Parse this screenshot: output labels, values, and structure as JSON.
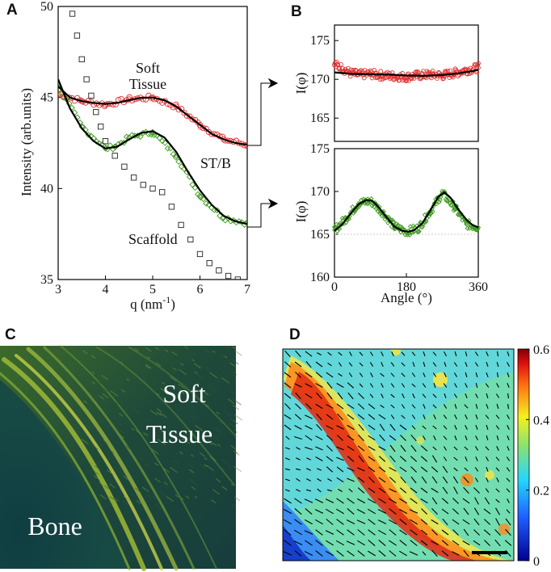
{
  "panels": {
    "a": {
      "letter": "A"
    },
    "b": {
      "letter": "B"
    },
    "c": {
      "letter": "C"
    },
    "d": {
      "letter": "D"
    }
  },
  "colors": {
    "soft_tissue": "#e03030",
    "st_b": "#3a9a1c",
    "scaffold": "#222222",
    "fit": "#000000"
  },
  "chart_data": [
    {
      "id": "A",
      "type": "scatter",
      "title": "",
      "xlabel_base": "q (nm",
      "xlabel_sup": "-1",
      "xlabel_close": ")",
      "ylabel": "Intensity (arb.units)",
      "xlim": [
        3,
        7
      ],
      "ylim": [
        35,
        50
      ],
      "xticks": [
        "3",
        "4",
        "5",
        "6",
        "7"
      ],
      "yticks": [
        "35",
        "40",
        "45",
        "50"
      ],
      "annotations": {
        "soft_tissue_line1": "Soft",
        "soft_tissue_line2": "Tissue",
        "stb": "ST/B",
        "scaffold": "Scaffold"
      },
      "series": [
        {
          "name": "Soft Tissue",
          "marker": "circle",
          "color": "#e03030",
          "x": [
            3.0,
            3.5,
            4.0,
            4.5,
            5.0,
            5.5,
            6.0,
            6.5,
            7.0
          ],
          "y": [
            45.2,
            44.8,
            44.6,
            44.9,
            45.0,
            44.5,
            43.5,
            42.7,
            42.4
          ]
        },
        {
          "name": "ST/B",
          "marker": "diamond",
          "color": "#3a9a1c",
          "x": [
            3.0,
            3.5,
            4.0,
            4.2,
            4.5,
            5.0,
            5.5,
            6.0,
            6.5,
            7.0
          ],
          "y": [
            45.6,
            43.4,
            42.2,
            42.3,
            42.8,
            43.1,
            41.8,
            39.6,
            38.4,
            38.1
          ]
        },
        {
          "name": "Scaffold",
          "marker": "square",
          "color": "#222222",
          "x": [
            3.3,
            3.4,
            3.5,
            3.6,
            3.7,
            3.8,
            3.9,
            4.0,
            4.2,
            4.4,
            4.6,
            4.8,
            5.0,
            5.2,
            5.4,
            5.6,
            5.8,
            6.0,
            6.2,
            6.4,
            6.6,
            6.8
          ],
          "y": [
            49.6,
            48.4,
            47.1,
            46.0,
            45.1,
            44.2,
            43.4,
            42.6,
            41.8,
            41.2,
            40.6,
            40.2,
            40.0,
            39.8,
            39.0,
            38.0,
            37.2,
            36.4,
            35.9,
            35.5,
            35.2,
            35.0
          ]
        },
        {
          "name": "Soft Tissue fit",
          "marker": "line",
          "color": "#000000",
          "x": [
            3.0,
            3.25,
            3.5,
            3.75,
            4.0,
            4.25,
            4.5,
            4.75,
            5.0,
            5.25,
            5.5,
            5.75,
            6.0,
            6.25,
            6.5,
            6.75,
            7.0
          ],
          "y": [
            45.6,
            45.0,
            44.8,
            44.7,
            44.65,
            44.7,
            44.85,
            44.98,
            45.0,
            44.85,
            44.5,
            44.0,
            43.5,
            43.0,
            42.7,
            42.5,
            42.4
          ]
        },
        {
          "name": "ST/B fit",
          "marker": "line",
          "color": "#000000",
          "x": [
            3.0,
            3.25,
            3.5,
            3.75,
            4.0,
            4.25,
            4.5,
            4.75,
            5.0,
            5.25,
            5.5,
            5.75,
            6.0,
            6.25,
            6.5,
            6.75,
            7.0
          ],
          "y": [
            46.0,
            44.4,
            43.3,
            42.6,
            42.2,
            42.3,
            42.7,
            43.05,
            43.15,
            42.8,
            42.0,
            40.9,
            39.9,
            39.1,
            38.5,
            38.2,
            38.05
          ]
        }
      ]
    },
    {
      "id": "B-top",
      "type": "scatter",
      "title": "",
      "xlabel": "",
      "ylabel_base": "I(",
      "ylabel_greek": "φ",
      "ylabel_close": ")",
      "xlim": [
        0,
        360
      ],
      "ylim": [
        162,
        177
      ],
      "xticks": [],
      "yticks": [
        "165",
        "170",
        "175"
      ],
      "series": [
        {
          "name": "Soft Tissue angular",
          "marker": "circle",
          "color": "#e03030",
          "x": [
            0,
            20,
            40,
            60,
            90,
            120,
            150,
            180,
            210,
            240,
            270,
            300,
            330,
            360
          ],
          "y": [
            171.9,
            171.4,
            170.8,
            170.6,
            170.7,
            170.5,
            170.4,
            170.3,
            170.5,
            170.6,
            170.5,
            170.8,
            171.2,
            171.5
          ]
        },
        {
          "name": "Soft Tissue angular fit",
          "marker": "line",
          "color": "#000000",
          "x": [
            0,
            45,
            90,
            135,
            180,
            225,
            270,
            315,
            360
          ],
          "y": [
            170.9,
            170.7,
            170.65,
            170.6,
            170.5,
            170.45,
            170.55,
            170.8,
            171.2
          ]
        }
      ]
    },
    {
      "id": "B-bottom",
      "type": "scatter",
      "title": "",
      "xlabel": "Angle (°)",
      "ylabel_base": "I(",
      "ylabel_greek": "φ",
      "ylabel_close": ")",
      "xlim": [
        0,
        360
      ],
      "ylim": [
        160,
        175
      ],
      "xticks": [
        "0",
        "180",
        "360"
      ],
      "yticks": [
        "160",
        "165",
        "170",
        "175"
      ],
      "series": [
        {
          "name": "ST/B angular",
          "marker": "diamond",
          "color": "#3a9a1c",
          "x": [
            0,
            30,
            60,
            90,
            120,
            150,
            180,
            210,
            240,
            270,
            300,
            330,
            360
          ],
          "y": [
            165.5,
            166.9,
            168.6,
            168.9,
            167.6,
            165.9,
            165.3,
            165.7,
            167.7,
            169.8,
            168.2,
            166.2,
            165.8
          ]
        },
        {
          "name": "ST/B angular fit",
          "marker": "line",
          "color": "#000000",
          "x": [
            0,
            20,
            40,
            60,
            80,
            95,
            110,
            130,
            150,
            170,
            185,
            200,
            220,
            240,
            260,
            275,
            290,
            310,
            330,
            345,
            360
          ],
          "y": [
            165.4,
            166.2,
            167.4,
            168.5,
            169.0,
            168.9,
            168.2,
            167.0,
            165.9,
            165.4,
            165.3,
            165.5,
            166.3,
            167.8,
            169.4,
            169.9,
            169.3,
            167.9,
            166.7,
            166.1,
            165.8
          ]
        }
      ]
    },
    {
      "id": "D",
      "type": "heatmap",
      "title": "",
      "colorbar_range": [
        0,
        0.6
      ],
      "colorbar_ticks": [
        "0",
        "0.2",
        "0.4",
        "0.6"
      ]
    }
  ],
  "image_c": {
    "soft_tissue_line1": "Soft",
    "soft_tissue_line2": "Tissue",
    "bone": "Bone"
  }
}
